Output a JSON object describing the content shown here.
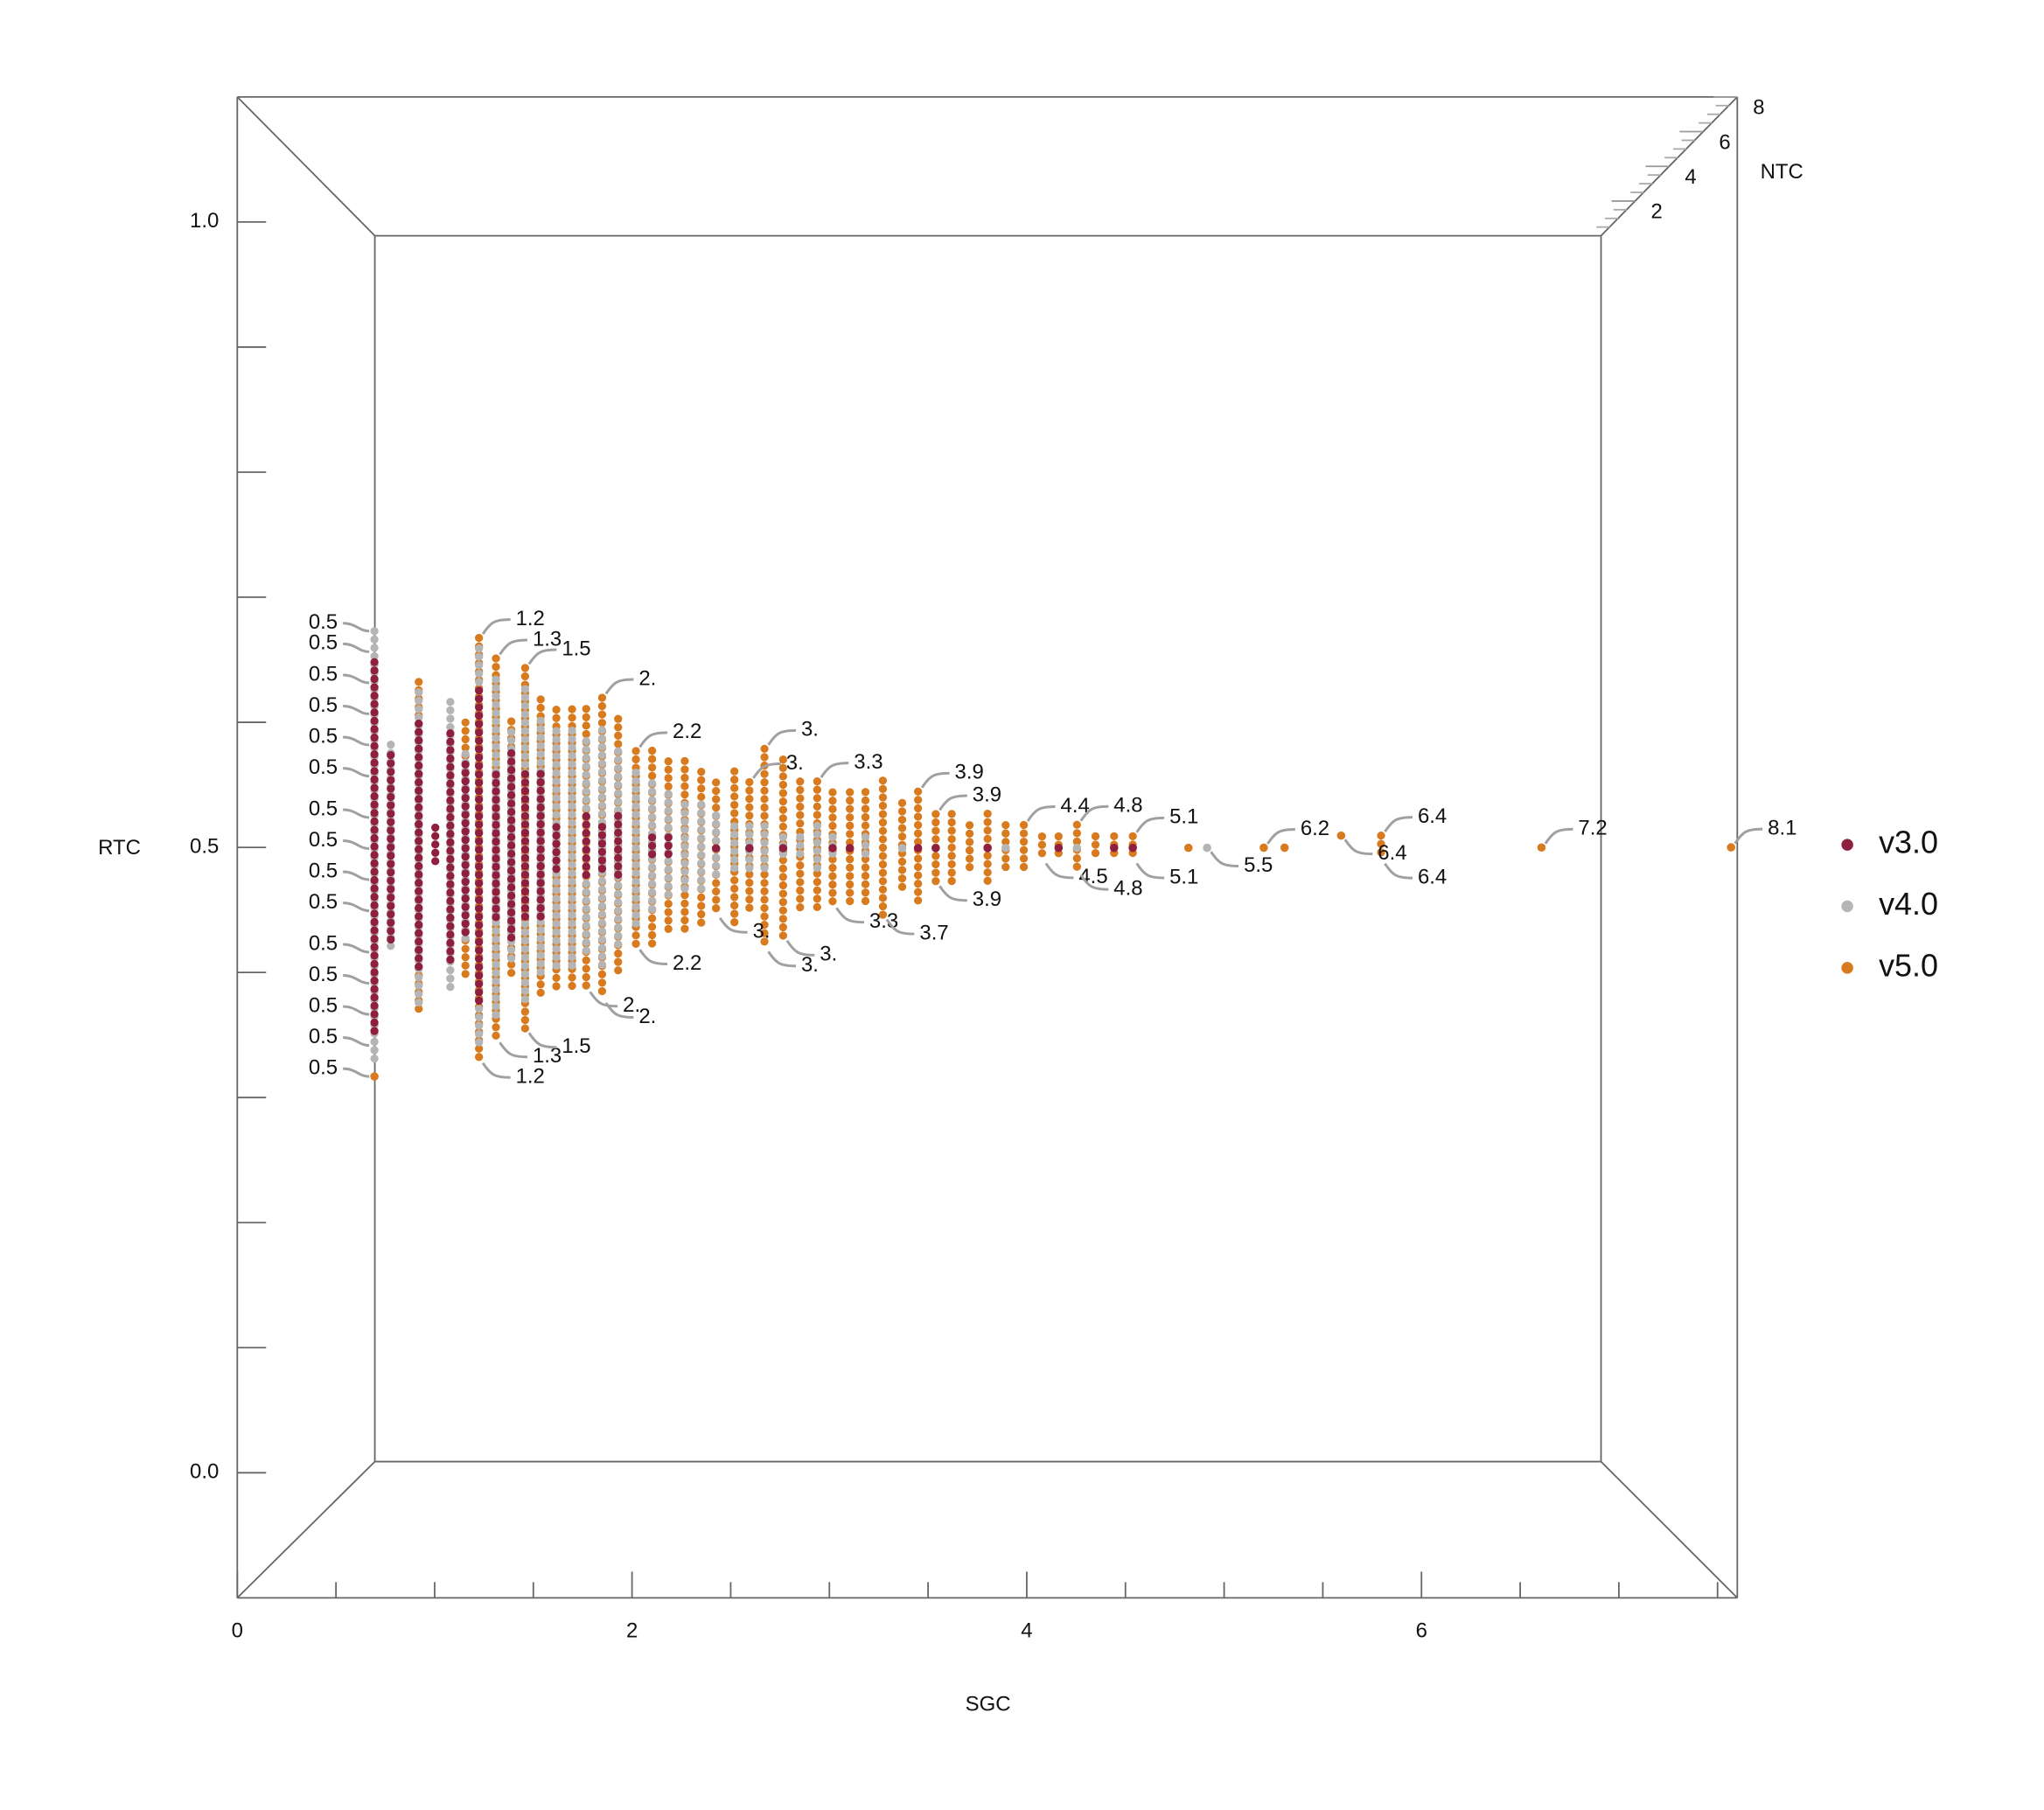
{
  "chart_data": {
    "type": "scatter3d",
    "xlabel": "SGC",
    "ylabel": "RTC",
    "zlabel": "NTC",
    "xlim": [
      0,
      7.6
    ],
    "ylim": [
      -0.1,
      1.1
    ],
    "zlim": [
      0,
      8
    ],
    "xticks": [
      0,
      2,
      4,
      6
    ],
    "xminorticks": [
      0.5,
      1,
      1.5,
      2.5,
      3,
      3.5,
      4.5,
      5,
      5.5,
      6.5,
      7,
      7.5
    ],
    "yticks": [
      {
        "value": 0,
        "label": "0.0"
      },
      {
        "value": 0.5,
        "label": "0.5"
      },
      {
        "value": 1,
        "label": "1.0"
      }
    ],
    "yminorticks": [
      0.1,
      0.2,
      0.3,
      0.4,
      0.6,
      0.7,
      0.8,
      0.9
    ],
    "zticks": [
      2,
      4,
      6,
      8
    ],
    "zminorticks": [
      0.5,
      1,
      1.5,
      2.5,
      3,
      3.5,
      4.5,
      5,
      5.5,
      6.5,
      7,
      7.5
    ],
    "legend": "right",
    "series": [
      {
        "name": "v3.0",
        "color": "#8e1f3f",
        "x": [
          0.05,
          0.16,
          0.34,
          0.45,
          0.55,
          0.65,
          0.74,
          0.85,
          0.95,
          1.04,
          1.14,
          1.24,
          1.43,
          1.53,
          1.63,
          1.84,
          1.94,
          2.23,
          2.43,
          2.63,
          2.92,
          3.02,
          3.41,
          3.51,
          3.8,
          4.19,
          4.49,
          4.59
        ],
        "z": [
          0.5,
          0.6,
          0.7,
          0.8,
          0.9,
          1.0,
          1.1,
          1.2,
          1.3,
          1.4,
          1.5,
          1.6,
          1.8,
          1.9,
          2.0,
          2.2,
          2.3,
          2.6,
          2.8,
          3.0,
          3.3,
          3.4,
          3.8,
          3.9,
          4.2,
          4.6,
          4.9,
          5.0
        ],
        "y": [
          [
            0.32,
            0.68
          ],
          [
            0.41,
            0.59
          ],
          [
            0.38,
            0.62
          ],
          [
            0.48,
            0.52
          ],
          [
            0.39,
            0.61
          ],
          [
            0.42,
            0.58
          ],
          [
            0.35,
            0.65
          ],
          [
            0.43,
            0.57
          ],
          [
            0.41,
            0.59
          ],
          [
            0.43,
            0.57
          ],
          [
            0.43,
            0.57
          ],
          [
            0.48,
            0.52
          ],
          [
            0.47,
            0.53
          ],
          [
            0.48,
            0.52
          ],
          [
            0.47,
            0.53
          ],
          [
            0.49,
            0.51
          ],
          [
            0.49,
            0.51
          ],
          [
            0.5,
            0.5
          ],
          [
            0.5,
            0.5
          ],
          [
            0.5,
            0.5
          ],
          [
            0.5,
            0.5
          ],
          [
            0.5,
            0.5
          ],
          [
            0.5,
            0.5
          ],
          [
            0.5,
            0.5
          ],
          [
            0.5,
            0.5
          ],
          [
            0.5,
            0.5
          ],
          [
            0.5,
            0.5
          ],
          [
            0.5,
            0.5
          ]
        ]
      },
      {
        "name": "v4.0",
        "color": "#b5b5b5",
        "x": [
          0.05,
          0.16,
          0.34,
          0.55,
          0.65,
          0.74,
          0.85,
          0.95,
          1.04,
          1.14,
          1.24,
          1.34,
          1.43,
          1.53,
          1.63,
          1.74,
          1.84,
          1.94,
          2.04,
          2.14,
          2.23,
          2.34,
          2.43,
          2.52,
          2.63,
          2.73,
          2.83,
          2.92,
          3.11,
          3.32,
          3.9,
          4.29,
          4.98
        ],
        "z": [
          0.5,
          0.6,
          0.7,
          0.9,
          1.0,
          1.1,
          1.2,
          1.3,
          1.4,
          1.5,
          1.6,
          1.7,
          1.8,
          1.9,
          2.0,
          2.1,
          2.2,
          2.3,
          2.4,
          2.5,
          2.6,
          2.7,
          2.8,
          2.9,
          3.0,
          3.1,
          3.2,
          3.3,
          3.5,
          3.7,
          4.3,
          4.7,
          5.5
        ],
        "y": [
          [
            0.29,
            0.71
          ],
          [
            0.4,
            0.6
          ],
          [
            0.35,
            0.65
          ],
          [
            0.36,
            0.64
          ],
          [
            0.41,
            0.59
          ],
          [
            0.31,
            0.69
          ],
          [
            0.34,
            0.66
          ],
          [
            0.39,
            0.61
          ],
          [
            0.35,
            0.65
          ],
          [
            0.38,
            0.62
          ],
          [
            0.39,
            0.61
          ],
          [
            0.39,
            0.61
          ],
          [
            0.4,
            0.6
          ],
          [
            0.39,
            0.61
          ],
          [
            0.41,
            0.59
          ],
          [
            0.43,
            0.57
          ],
          [
            0.44,
            0.56
          ],
          [
            0.45,
            0.55
          ],
          [
            0.46,
            0.54
          ],
          [
            0.46,
            0.54
          ],
          [
            0.47,
            0.53
          ],
          [
            0.48,
            0.52
          ],
          [
            0.48,
            0.52
          ],
          [
            0.48,
            0.52
          ],
          [
            0.49,
            0.51
          ],
          [
            0.49,
            0.51
          ],
          [
            0.48,
            0.52
          ],
          [
            0.49,
            0.51
          ],
          [
            0.49,
            0.51
          ],
          [
            0.5,
            0.5
          ],
          [
            0.5,
            0.5
          ],
          [
            0.5,
            0.5
          ],
          [
            0.5,
            0.5
          ]
        ]
      },
      {
        "name": "v5.0",
        "color": "#d87a1e",
        "x": [
          0.05,
          0.34,
          0.65,
          0.74,
          0.85,
          0.95,
          1.04,
          1.14,
          1.24,
          1.34,
          1.43,
          1.53,
          1.63,
          1.74,
          1.84,
          1.94,
          2.04,
          2.14,
          2.23,
          2.34,
          2.43,
          2.52,
          2.63,
          2.73,
          2.83,
          2.92,
          3.02,
          3.11,
          3.21,
          3.32,
          3.41,
          3.51,
          3.6,
          3.7,
          3.8,
          3.9,
          4.0,
          4.1,
          4.19,
          4.29,
          4.39,
          4.49,
          4.59,
          4.89,
          5.26,
          5.37,
          5.66,
          5.87,
          6.66,
          7.56
        ],
        "z": [
          0.5,
          0.7,
          1.0,
          1.1,
          1.2,
          1.3,
          1.4,
          1.5,
          1.6,
          1.7,
          1.8,
          1.9,
          2.0,
          2.1,
          2.2,
          2.3,
          2.4,
          2.5,
          2.6,
          2.7,
          2.8,
          2.9,
          3.0,
          3.1,
          3.2,
          3.3,
          3.4,
          3.5,
          3.6,
          3.7,
          3.8,
          3.9,
          4.0,
          4.1,
          4.2,
          4.3,
          4.4,
          4.5,
          4.6,
          4.7,
          4.8,
          4.9,
          5.0,
          5.1,
          6.2,
          6.2,
          6.4,
          6.4,
          7.2,
          8.1
        ],
        "y": [
          [
            0.28,
            0.28
          ],
          [
            0.34,
            0.66
          ],
          [
            0.38,
            0.62
          ],
          [
            0.3,
            0.7
          ],
          [
            0.32,
            0.68
          ],
          [
            0.38,
            0.62
          ],
          [
            0.33,
            0.67
          ],
          [
            0.36,
            0.64
          ],
          [
            0.37,
            0.63
          ],
          [
            0.37,
            0.63
          ],
          [
            0.37,
            0.63
          ],
          [
            0.36,
            0.64
          ],
          [
            0.38,
            0.62
          ],
          [
            0.41,
            0.59
          ],
          [
            0.41,
            0.59
          ],
          [
            0.42,
            0.58
          ],
          [
            0.42,
            0.58
          ],
          [
            0.43,
            0.57
          ],
          [
            0.44,
            0.56
          ],
          [
            0.43,
            0.57
          ],
          [
            0.44,
            0.56
          ],
          [
            0.41,
            0.59
          ],
          [
            0.42,
            0.58
          ],
          [
            0.44,
            0.56
          ],
          [
            0.44,
            0.56
          ],
          [
            0.45,
            0.55
          ],
          [
            0.45,
            0.55
          ],
          [
            0.45,
            0.55
          ],
          [
            0.44,
            0.56
          ],
          [
            0.46,
            0.54
          ],
          [
            0.45,
            0.55
          ],
          [
            0.47,
            0.53
          ],
          [
            0.47,
            0.53
          ],
          [
            0.48,
            0.52
          ],
          [
            0.47,
            0.53
          ],
          [
            0.48,
            0.52
          ],
          [
            0.48,
            0.52
          ],
          [
            0.49,
            0.51
          ],
          [
            0.49,
            0.51
          ],
          [
            0.48,
            0.52
          ],
          [
            0.49,
            0.51
          ],
          [
            0.49,
            0.51
          ],
          [
            0.49,
            0.51
          ],
          [
            0.5,
            0.5
          ],
          [
            0.5,
            0.5
          ],
          [
            0.5,
            0.5
          ],
          [
            0.51,
            0.51
          ],
          [
            0.49,
            0.51
          ],
          [
            0.5,
            0.5
          ],
          [
            0.5,
            0.5
          ]
        ]
      }
    ],
    "annotations": [
      {
        "text": "0.5",
        "x": 0.05,
        "y": 0.71,
        "z": 0.5,
        "side": "left"
      },
      {
        "text": "0.5",
        "x": 0.05,
        "y": 0.69,
        "z": 0.5,
        "side": "left"
      },
      {
        "text": "0.5",
        "x": 0.05,
        "y": 0.66,
        "z": 0.5,
        "side": "left"
      },
      {
        "text": "0.5",
        "x": 0.05,
        "y": 0.63,
        "z": 0.5,
        "side": "left"
      },
      {
        "text": "0.5",
        "x": 0.05,
        "y": 0.6,
        "z": 0.5,
        "side": "left"
      },
      {
        "text": "0.5",
        "x": 0.05,
        "y": 0.57,
        "z": 0.5,
        "side": "left"
      },
      {
        "text": "0.5",
        "x": 0.05,
        "y": 0.53,
        "z": 0.5,
        "side": "left"
      },
      {
        "text": "0.5",
        "x": 0.05,
        "y": 0.5,
        "z": 0.5,
        "side": "left"
      },
      {
        "text": "0.5",
        "x": 0.05,
        "y": 0.47,
        "z": 0.5,
        "side": "left"
      },
      {
        "text": "0.5",
        "x": 0.05,
        "y": 0.44,
        "z": 0.5,
        "side": "left"
      },
      {
        "text": "0.5",
        "x": 0.05,
        "y": 0.4,
        "z": 0.5,
        "side": "left"
      },
      {
        "text": "0.5",
        "x": 0.05,
        "y": 0.37,
        "z": 0.5,
        "side": "left"
      },
      {
        "text": "0.5",
        "x": 0.05,
        "y": 0.34,
        "z": 0.5,
        "side": "left"
      },
      {
        "text": "0.5",
        "x": 0.05,
        "y": 0.31,
        "z": 0.5,
        "side": "left"
      },
      {
        "text": "0.5",
        "x": 0.05,
        "y": 0.28,
        "z": 0.5,
        "side": "left"
      },
      {
        "text": "1.2",
        "x": 0.74,
        "y": 0.7,
        "z": 1.1,
        "side": "above"
      },
      {
        "text": "1.2",
        "x": 0.74,
        "y": 0.3,
        "z": 1.1,
        "side": "below"
      },
      {
        "text": "1.3",
        "x": 0.85,
        "y": 0.68,
        "z": 1.2,
        "side": "above"
      },
      {
        "text": "1.3",
        "x": 0.85,
        "y": 0.32,
        "z": 1.2,
        "side": "below"
      },
      {
        "text": "1.5",
        "x": 1.04,
        "y": 0.67,
        "z": 1.4,
        "side": "above"
      },
      {
        "text": "1.5",
        "x": 1.04,
        "y": 0.33,
        "z": 1.4,
        "side": "below"
      },
      {
        "text": "2.",
        "x": 1.53,
        "y": 0.64,
        "z": 1.9,
        "side": "above"
      },
      {
        "text": "2.",
        "x": 1.43,
        "y": 0.37,
        "z": 1.8,
        "side": "below"
      },
      {
        "text": "2.",
        "x": 1.53,
        "y": 0.36,
        "z": 1.9,
        "side": "below"
      },
      {
        "text": "2.2",
        "x": 1.74,
        "y": 0.59,
        "z": 2.1,
        "side": "above"
      },
      {
        "text": "2.2",
        "x": 1.74,
        "y": 0.41,
        "z": 2.1,
        "side": "below"
      },
      {
        "text": "3.",
        "x": 2.43,
        "y": 0.56,
        "z": 2.8,
        "side": "above"
      },
      {
        "text": "3.",
        "x": 2.52,
        "y": 0.59,
        "z": 2.9,
        "side": "above"
      },
      {
        "text": "3.",
        "x": 2.23,
        "y": 0.44,
        "z": 2.6,
        "side": "below"
      },
      {
        "text": "3.",
        "x": 2.52,
        "y": 0.41,
        "z": 2.9,
        "side": "below"
      },
      {
        "text": "3.",
        "x": 2.63,
        "y": 0.42,
        "z": 3.0,
        "side": "below"
      },
      {
        "text": "3.3",
        "x": 2.83,
        "y": 0.56,
        "z": 3.2,
        "side": "above"
      },
      {
        "text": "3.3",
        "x": 2.92,
        "y": 0.45,
        "z": 3.3,
        "side": "below"
      },
      {
        "text": "3.9",
        "x": 3.41,
        "y": 0.55,
        "z": 3.8,
        "side": "above"
      },
      {
        "text": "3.9",
        "x": 3.51,
        "y": 0.53,
        "z": 3.9,
        "side": "above"
      },
      {
        "text": "3.9",
        "x": 3.51,
        "y": 0.47,
        "z": 3.9,
        "side": "below"
      },
      {
        "text": "3.7",
        "x": 3.21,
        "y": 0.44,
        "z": 3.6,
        "side": "below"
      },
      {
        "text": "4.4",
        "x": 4.0,
        "y": 0.52,
        "z": 4.4,
        "side": "above"
      },
      {
        "text": "4.5",
        "x": 4.1,
        "y": 0.49,
        "z": 4.5,
        "side": "below"
      },
      {
        "text": "4.8",
        "x": 4.29,
        "y": 0.52,
        "z": 4.7,
        "side": "above"
      },
      {
        "text": "4.8",
        "x": 4.29,
        "y": 0.48,
        "z": 4.7,
        "side": "below"
      },
      {
        "text": "5.1",
        "x": 4.59,
        "y": 0.51,
        "z": 5.0,
        "side": "above"
      },
      {
        "text": "5.1",
        "x": 4.59,
        "y": 0.49,
        "z": 5.0,
        "side": "below"
      },
      {
        "text": "5.5",
        "x": 4.98,
        "y": 0.5,
        "z": 5.5,
        "side": "below"
      },
      {
        "text": "6.2",
        "x": 5.26,
        "y": 0.5,
        "z": 6.2,
        "side": "above"
      },
      {
        "text": "6.4",
        "x": 5.66,
        "y": 0.51,
        "z": 6.4,
        "side": "below"
      },
      {
        "text": "6.4",
        "x": 5.87,
        "y": 0.51,
        "z": 6.4,
        "side": "above"
      },
      {
        "text": "6.4",
        "x": 5.87,
        "y": 0.49,
        "z": 6.4,
        "side": "below"
      },
      {
        "text": "7.2",
        "x": 6.66,
        "y": 0.5,
        "z": 7.2,
        "side": "above"
      },
      {
        "text": "8.1",
        "x": 7.56,
        "y": 0.5,
        "z": 8.1,
        "side": "above"
      }
    ]
  }
}
